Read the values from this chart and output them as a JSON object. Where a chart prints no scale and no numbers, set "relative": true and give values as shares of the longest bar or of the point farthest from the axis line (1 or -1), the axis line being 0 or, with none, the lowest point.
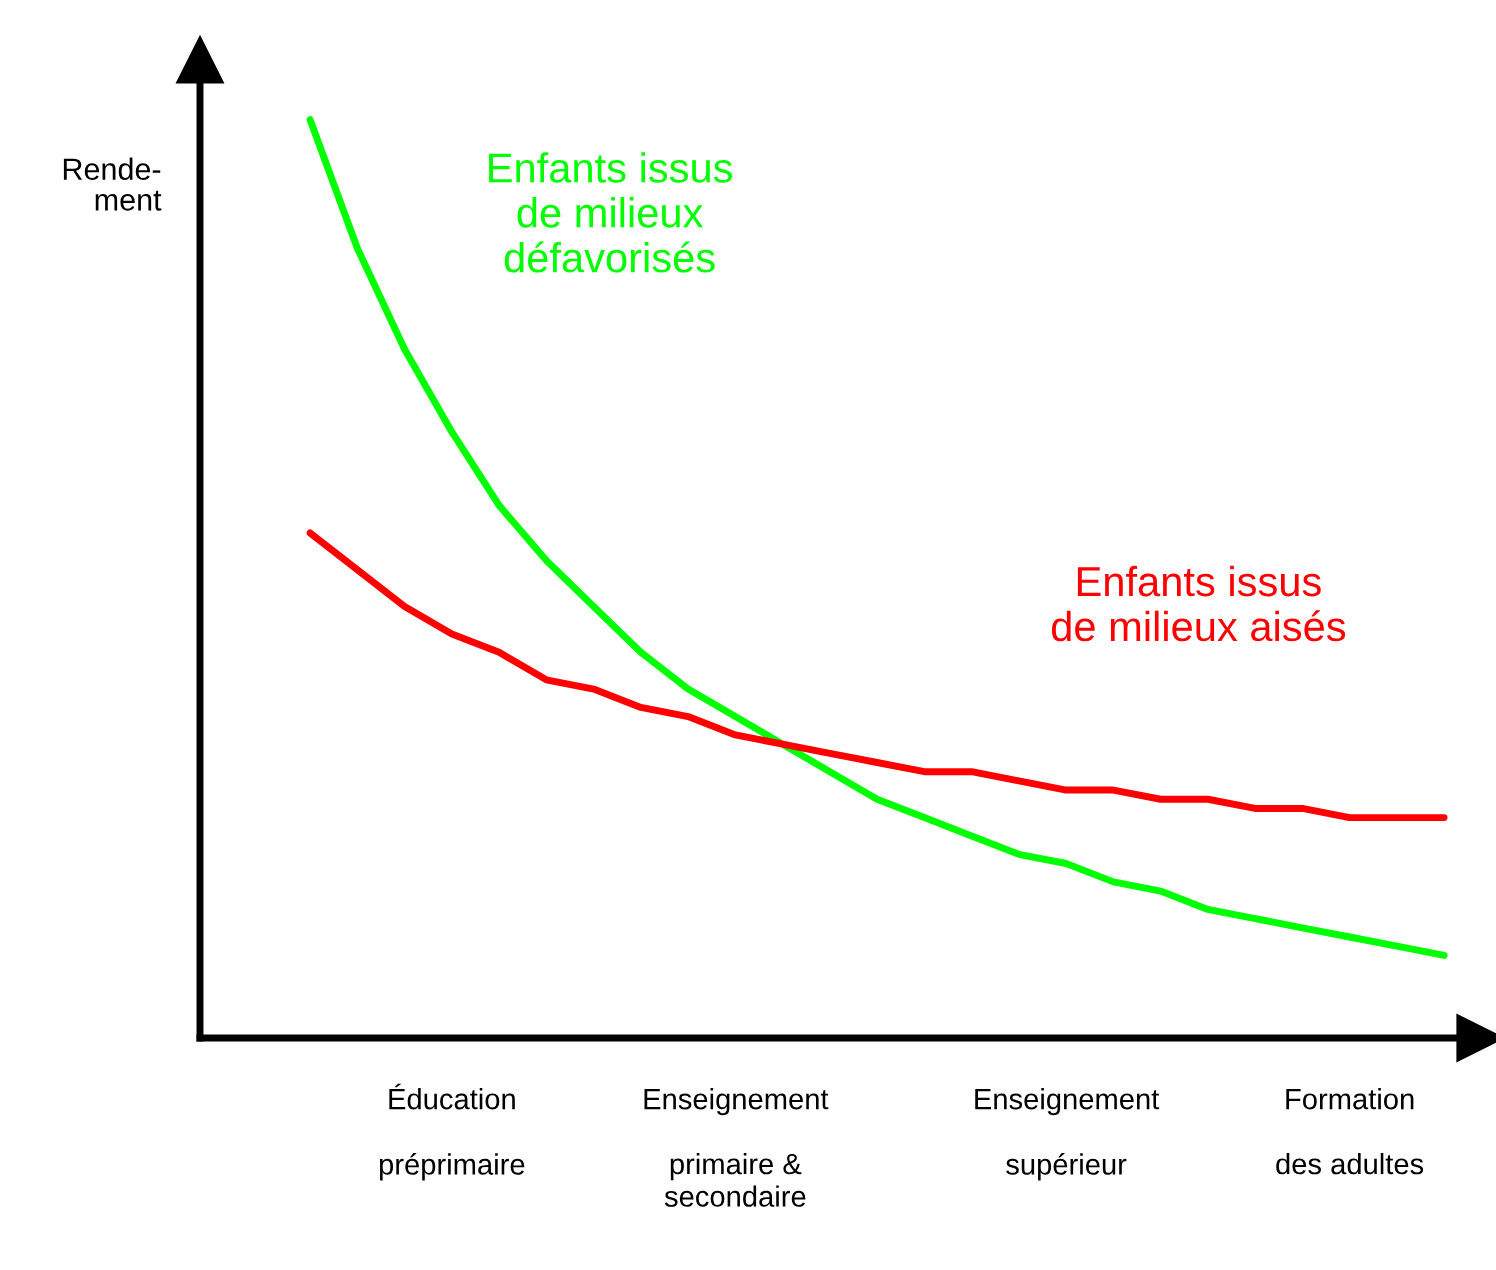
{
  "chart_data": {
    "type": "line",
    "relative": true,
    "ylabel": "Rende-\nment",
    "categories": [
      null,
      null,
      null,
      "Éducation\n\npréprimaire",
      null,
      null,
      null,
      null,
      null,
      "Enseignement\n\nprimaire &\nsecondaire",
      null,
      null,
      null,
      null,
      null,
      null,
      "Enseignement\n\nsupérieur",
      null,
      null,
      null,
      null,
      null,
      "Formation\n\ndes adultes",
      null,
      null
    ],
    "series": [
      {
        "name": "Enfants issus\nde milieux\ndéfavorisés",
        "color": "#00ff00",
        "values": [
          1.0,
          0.86,
          0.75,
          0.66,
          0.58,
          0.52,
          0.47,
          0.42,
          0.38,
          0.35,
          0.32,
          0.29,
          0.26,
          0.24,
          0.22,
          0.2,
          0.19,
          0.17,
          0.16,
          0.14,
          0.13,
          0.12,
          0.11,
          0.1,
          0.09
        ]
      },
      {
        "name": "Enfants issus\nde milieux aisés",
        "color": "#ff0000",
        "values": [
          0.55,
          0.51,
          0.47,
          0.44,
          0.42,
          0.39,
          0.38,
          0.36,
          0.35,
          0.33,
          0.32,
          0.31,
          0.3,
          0.29,
          0.29,
          0.28,
          0.27,
          0.27,
          0.26,
          0.26,
          0.25,
          0.25,
          0.24,
          0.24,
          0.24
        ]
      }
    ],
    "grid": false,
    "marker": "none",
    "line_style": "solid"
  }
}
